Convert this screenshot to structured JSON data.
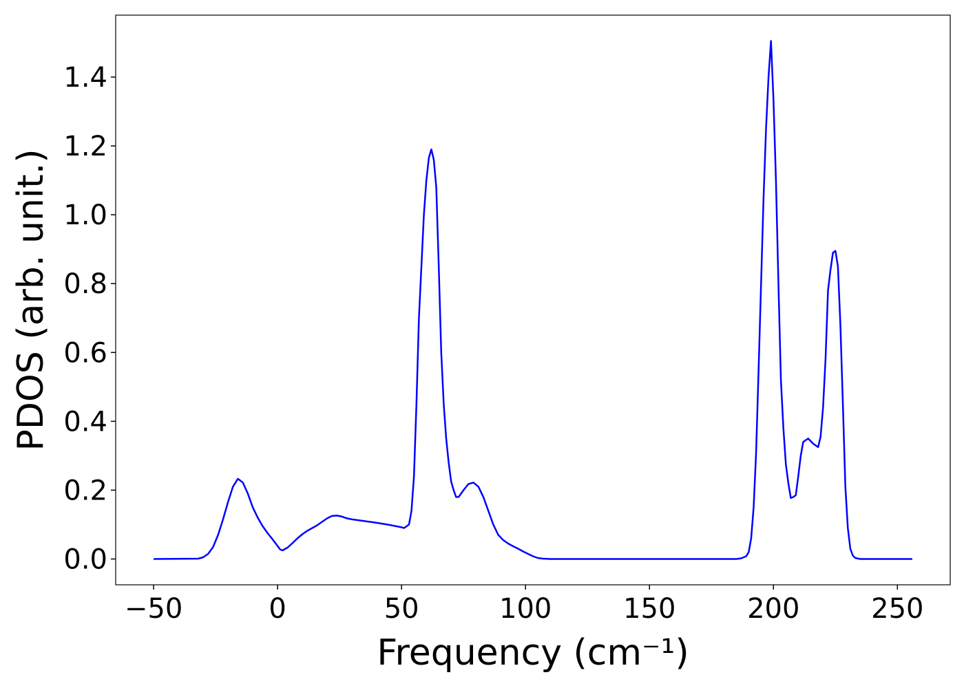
{
  "chart_data": {
    "type": "line",
    "xlabel": "Frequency (cm⁻¹)",
    "ylabel": "PDOS (arb. unit.)",
    "color": "#0000ff",
    "x": [
      -50,
      -32,
      -30,
      -28,
      -26,
      -24,
      -22,
      -20,
      -18,
      -16,
      -14,
      -12,
      -10,
      -8,
      -6,
      -4,
      -2,
      0,
      1,
      2,
      4,
      6,
      8,
      10,
      12,
      14,
      16,
      18,
      20,
      22,
      24,
      26,
      28,
      30,
      35,
      40,
      45,
      50,
      51,
      53,
      54,
      55,
      56,
      57,
      58,
      59,
      60,
      61,
      62,
      63,
      64,
      65,
      66,
      67,
      68,
      69,
      70,
      71,
      72,
      73,
      75,
      77,
      79,
      81,
      83,
      85,
      87,
      89,
      91,
      93,
      95,
      97,
      99,
      101,
      103,
      105,
      107,
      110,
      185,
      187,
      189,
      190,
      191,
      192,
      193,
      194,
      195,
      196,
      197,
      198,
      199,
      200,
      201,
      202,
      203,
      204,
      205,
      206,
      207,
      208,
      209,
      210,
      211,
      212,
      213,
      214,
      216,
      218,
      219,
      220,
      221,
      222,
      223,
      224,
      225,
      226,
      227,
      228,
      229,
      230,
      231,
      232,
      233,
      235,
      256
    ],
    "values": [
      0,
      0.001,
      0.005,
      0.015,
      0.035,
      0.07,
      0.115,
      0.165,
      0.21,
      0.233,
      0.222,
      0.19,
      0.15,
      0.12,
      0.095,
      0.075,
      0.057,
      0.038,
      0.028,
      0.025,
      0.033,
      0.046,
      0.06,
      0.072,
      0.082,
      0.09,
      0.098,
      0.108,
      0.118,
      0.125,
      0.126,
      0.123,
      0.118,
      0.115,
      0.11,
      0.105,
      0.099,
      0.092,
      0.09,
      0.1,
      0.14,
      0.24,
      0.45,
      0.7,
      0.85,
      1.0,
      1.1,
      1.165,
      1.19,
      1.16,
      1.08,
      0.85,
      0.6,
      0.45,
      0.35,
      0.28,
      0.225,
      0.2,
      0.18,
      0.18,
      0.2,
      0.218,
      0.222,
      0.21,
      0.18,
      0.14,
      0.1,
      0.07,
      0.055,
      0.045,
      0.037,
      0.03,
      0.022,
      0.015,
      0.008,
      0.003,
      0.001,
      0,
      0,
      0.002,
      0.008,
      0.02,
      0.06,
      0.15,
      0.31,
      0.55,
      0.8,
      1.05,
      1.25,
      1.4,
      1.505,
      1.335,
      1.1,
      0.8,
      0.52,
      0.38,
      0.275,
      0.22,
      0.177,
      0.18,
      0.185,
      0.24,
      0.3,
      0.34,
      0.345,
      0.35,
      0.335,
      0.325,
      0.355,
      0.44,
      0.58,
      0.78,
      0.84,
      0.89,
      0.895,
      0.85,
      0.68,
      0.45,
      0.21,
      0.09,
      0.03,
      0.01,
      0.003,
      0,
      0
    ],
    "xlim": [
      -65.3,
      271.3
    ],
    "ylim": [
      -0.075,
      1.58
    ],
    "xticks": [
      {
        "value": -50,
        "label": "−50"
      },
      0,
      50,
      100,
      150,
      200,
      250
    ],
    "yticks": [
      {
        "value": 0,
        "label": "0.0"
      },
      0.2,
      0.4,
      0.6,
      0.8,
      {
        "value": 1,
        "label": "1.0"
      },
      1.2,
      1.4
    ]
  }
}
